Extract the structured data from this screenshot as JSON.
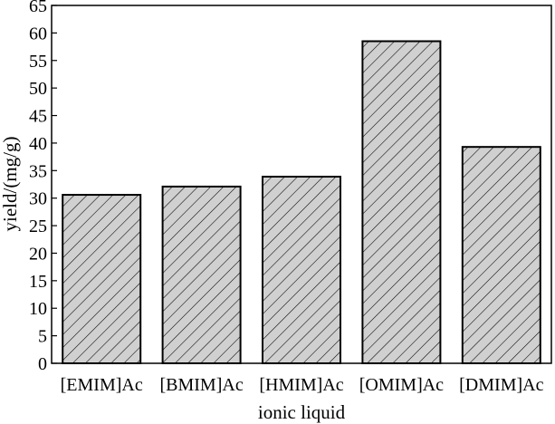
{
  "chart_data": {
    "type": "bar",
    "title": "",
    "xlabel": "ionic liquid",
    "ylabel": "yield/(mg/g)",
    "categories": [
      "[EMIM]Ac",
      "[BMIM]Ac",
      "[HMIM]Ac",
      "[OMIM]Ac",
      "[DMIM]Ac"
    ],
    "values": [
      30.6,
      32.1,
      33.9,
      58.5,
      39.3
    ],
    "ylim": [
      0,
      65
    ],
    "yticks": [
      0,
      5,
      10,
      15,
      20,
      25,
      30,
      35,
      40,
      45,
      50,
      55,
      60,
      65
    ],
    "grid": false,
    "legend": "none",
    "bar_fill": "#d0d0d0",
    "hatch_color": "#000000",
    "hatch_style": "diagonal"
  }
}
